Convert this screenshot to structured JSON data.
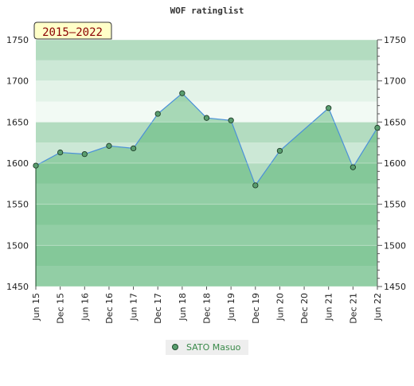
{
  "chart_data": {
    "type": "area",
    "title": "WOF ratinglist",
    "period_badge": "2015–2022",
    "xlabel": "",
    "ylabel": "",
    "ylim": [
      1450,
      1750
    ],
    "y_ticks": [
      1450,
      1500,
      1550,
      1600,
      1650,
      1700,
      1750
    ],
    "x_ticks": [
      "Jun 15",
      "Dec 15",
      "Jun 16",
      "Dec 16",
      "Jun 17",
      "Dec 17",
      "Jun 18",
      "Dec 18",
      "Jun 19",
      "Dec 19",
      "Jun 20",
      "Dec 20",
      "Jun 21",
      "Dec 21",
      "Jun 22"
    ],
    "grid": true,
    "legend": "bottom-center",
    "series": [
      {
        "name": "SATO Masuo",
        "color": "#5a9e6f",
        "line_color": "#4a90d9",
        "points": [
          {
            "x": "Jun 15",
            "y": 1597
          },
          {
            "x": "Dec 15",
            "y": 1613
          },
          {
            "x": "Jun 16",
            "y": 1611
          },
          {
            "x": "Dec 16",
            "y": 1621
          },
          {
            "x": "Jun 17",
            "y": 1618
          },
          {
            "x": "Dec 17",
            "y": 1660
          },
          {
            "x": "Jun 18",
            "y": 1685
          },
          {
            "x": "Dec 18",
            "y": 1655
          },
          {
            "x": "Jun 19",
            "y": 1652
          },
          {
            "x": "Dec 19",
            "y": 1573
          },
          {
            "x": "Jun 20",
            "y": 1615
          },
          {
            "x": "Jun 21",
            "y": 1667
          },
          {
            "x": "Dec 21",
            "y": 1595
          },
          {
            "x": "Jun 22",
            "y": 1643
          }
        ]
      }
    ]
  }
}
